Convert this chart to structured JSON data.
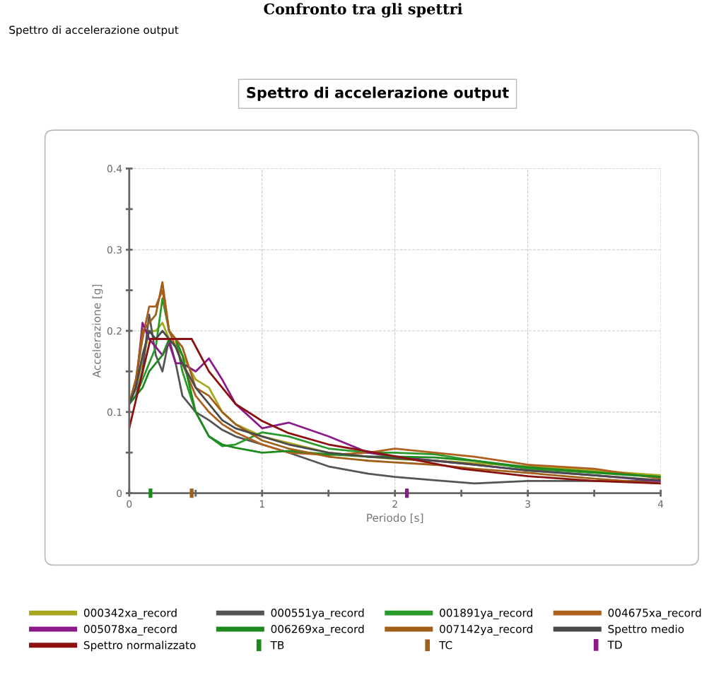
{
  "chart_data": {
    "type": "line",
    "title": "Spettro di accelerazione output",
    "xlabel": "Periodo [s]",
    "ylabel": "Accelerazione [g]",
    "annotations": [
      "Confronto tra gli spettri",
      "Spettro di accelerazione output"
    ],
    "x": [
      0,
      0.05,
      0.1,
      0.15,
      0.2,
      0.25,
      0.3,
      0.35,
      0.4,
      0.5,
      0.6,
      0.7,
      0.8,
      1.0,
      1.2,
      1.5,
      1.8,
      2.0,
      2.3,
      2.6,
      3.0,
      3.5,
      4.0
    ],
    "series": [
      {
        "name": "000342xa_record",
        "color": "#a8a820",
        "values": [
          0.11,
          0.13,
          0.16,
          0.2,
          0.2,
          0.21,
          0.19,
          0.18,
          0.17,
          0.14,
          0.13,
          0.1,
          0.085,
          0.07,
          0.062,
          0.05,
          0.045,
          0.042,
          0.04,
          0.037,
          0.033,
          0.028,
          0.022
        ]
      },
      {
        "name": "000551ya_record",
        "color": "#555555",
        "values": [
          0.11,
          0.12,
          0.15,
          0.22,
          0.17,
          0.15,
          0.19,
          0.16,
          0.12,
          0.1,
          0.09,
          0.078,
          0.07,
          0.06,
          0.05,
          0.033,
          0.024,
          0.02,
          0.016,
          0.012,
          0.015,
          0.015,
          0.015
        ]
      },
      {
        "name": "001891ya_record",
        "color": "#2a9a2a",
        "values": [
          0.11,
          0.12,
          0.14,
          0.16,
          0.18,
          0.24,
          0.2,
          0.19,
          0.15,
          0.1,
          0.07,
          0.058,
          0.06,
          0.075,
          0.07,
          0.055,
          0.05,
          0.05,
          0.048,
          0.04,
          0.03,
          0.025,
          0.02
        ]
      },
      {
        "name": "004675xa_record",
        "color": "#b0601e",
        "values": [
          0.11,
          0.14,
          0.19,
          0.23,
          0.23,
          0.25,
          0.2,
          0.18,
          0.16,
          0.12,
          0.1,
          0.085,
          0.075,
          0.06,
          0.05,
          0.047,
          0.05,
          0.055,
          0.05,
          0.045,
          0.035,
          0.03,
          0.018
        ]
      },
      {
        "name": "005078xa_record",
        "color": "#8b1a8b",
        "values": [
          0.11,
          0.13,
          0.21,
          0.19,
          0.18,
          0.17,
          0.185,
          0.16,
          0.16,
          0.15,
          0.166,
          0.14,
          0.11,
          0.08,
          0.087,
          0.07,
          0.05,
          0.045,
          0.04,
          0.035,
          0.028,
          0.022,
          0.015
        ]
      },
      {
        "name": "006269xa_record",
        "color": "#1f8a1f",
        "values": [
          0.11,
          0.12,
          0.13,
          0.15,
          0.16,
          0.17,
          0.19,
          0.19,
          0.17,
          0.1,
          0.07,
          0.06,
          0.056,
          0.05,
          0.052,
          0.048,
          0.045,
          0.045,
          0.044,
          0.04,
          0.032,
          0.026,
          0.02
        ]
      },
      {
        "name": "007142ya_record",
        "color": "#a0601a",
        "values": [
          0.11,
          0.14,
          0.2,
          0.21,
          0.22,
          0.26,
          0.2,
          0.19,
          0.18,
          0.13,
          0.12,
          0.1,
          0.085,
          0.065,
          0.055,
          0.045,
          0.04,
          0.038,
          0.035,
          0.03,
          0.025,
          0.018,
          0.012
        ]
      },
      {
        "name": "Spettro medio",
        "color": "#4a4a4a",
        "values": [
          0.11,
          0.13,
          0.17,
          0.2,
          0.19,
          0.2,
          0.19,
          0.18,
          0.16,
          0.13,
          0.11,
          0.09,
          0.08,
          0.07,
          0.06,
          0.05,
          0.045,
          0.043,
          0.04,
          0.035,
          0.028,
          0.022,
          0.016
        ]
      },
      {
        "name": "Spettro normalizzato",
        "color": "#8b1010",
        "x": [
          0,
          0.16,
          0.47,
          0.6,
          0.8,
          1.0,
          1.2,
          1.5,
          2.09,
          2.5,
          3.0,
          3.5,
          4.0
        ],
        "values": [
          0.08,
          0.19,
          0.19,
          0.15,
          0.11,
          0.089,
          0.074,
          0.06,
          0.043,
          0.03,
          0.021,
          0.015,
          0.012
        ]
      },
      {
        "name": "TB",
        "type": "scatter",
        "color": "#1a8a1a",
        "x": [
          0.16
        ],
        "values": [
          0
        ]
      },
      {
        "name": "TC",
        "type": "scatter",
        "color": "#a0601a",
        "x": [
          0.47
        ],
        "values": [
          0
        ]
      },
      {
        "name": "TD",
        "type": "scatter",
        "color": "#8b1a8b",
        "x": [
          2.09
        ],
        "values": [
          0
        ]
      }
    ],
    "xlim": [
      0,
      4
    ],
    "xticks": [
      0,
      {
        "value": 0.5,
        "label": null
      },
      1,
      {
        "value": 1.5,
        "label": null
      },
      2,
      {
        "value": 2.5,
        "label": null
      },
      3,
      {
        "value": 3.5,
        "label": null
      },
      4
    ],
    "ylim": [
      0,
      0.4
    ],
    "yticks": [
      0,
      {
        "value": 0.05,
        "label": null
      },
      0.1,
      {
        "value": 0.15,
        "label": null
      },
      0.2,
      {
        "value": 0.25,
        "label": null
      },
      0.3,
      {
        "value": 0.35,
        "label": null
      },
      0.4
    ],
    "grid": true,
    "legend": "bottom",
    "line_style": "solid"
  }
}
